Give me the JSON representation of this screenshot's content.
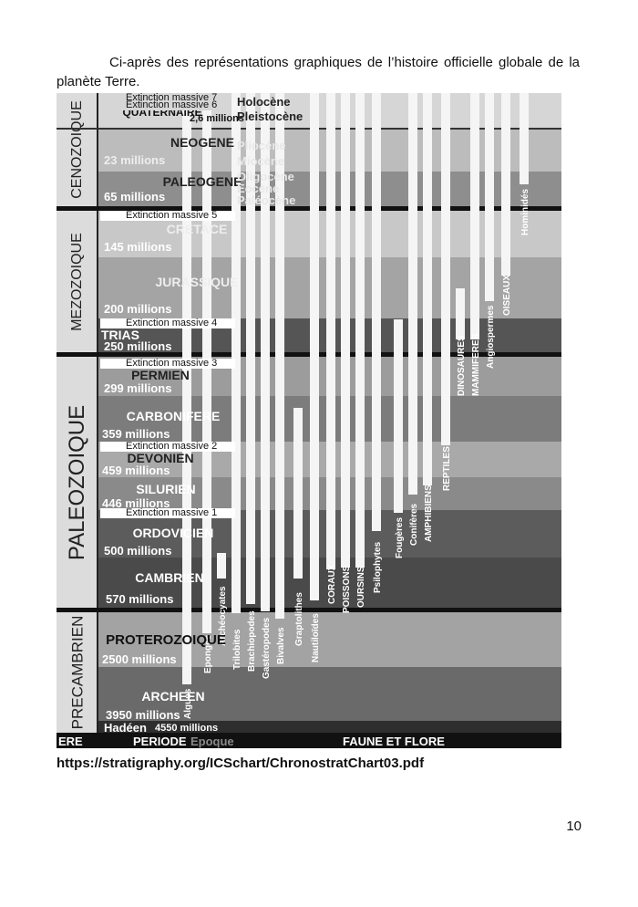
{
  "intro_text": "Ci-après des représentations graphiques de l’histoire officielle globale de la planète Terre.",
  "source_link": "https://stratigraphy.org/ICSchart/ChronostratChart03.pdf",
  "page_number": "10",
  "eras": [
    {
      "name": "CENOZOIQUE",
      "font_px": 16
    },
    {
      "name": "MEZOZOIQUE",
      "font_px": 16
    },
    {
      "name": "PALEOZOIQUE",
      "font_px": 24
    },
    {
      "name": "PRECAMBRIEN",
      "font_px": 17
    }
  ],
  "periods": [
    {
      "name": "QUATERNAIRE",
      "time": "2,6 millions",
      "shade": "#d6d6d6"
    },
    {
      "name": "NEOGENE",
      "time": "23 millions",
      "shade": "#bcbcbc"
    },
    {
      "name": "PALEOGENE",
      "time": "65 millions",
      "shade": "#8e8e8e"
    },
    {
      "name": "CRETACE",
      "time": "145 millions",
      "shade": "#c8c8c8"
    },
    {
      "name": "JURASSIQUE",
      "time": "200 millions",
      "shade": "#a4a4a4"
    },
    {
      "name": "TRIAS",
      "time": "250 millions",
      "shade": "#555555"
    },
    {
      "name": "PERMIEN",
      "time": "299 millions",
      "shade": "#9c9c9c"
    },
    {
      "name": "CARBONIFERE",
      "time": "359 millions",
      "shade": "#7c7c7c"
    },
    {
      "name": "DEVONIEN",
      "time": "459 millions",
      "shade": "#a9a9a9"
    },
    {
      "name": "SILURIEN",
      "time": "446 millions",
      "shade": "#8a8a8a"
    },
    {
      "name": "ORDOVICIEN",
      "time": "500 millions",
      "shade": "#5c5c5c"
    },
    {
      "name": "CAMBRIEN",
      "time": "570 millions",
      "shade": "#4a4a4a"
    },
    {
      "name": "PROTEROZOIQUE",
      "time": "2500 millions",
      "shade": "#a3a3a3"
    },
    {
      "name": "ARCHEEN",
      "time": "3950 millions",
      "shade": "#6a6a6a"
    },
    {
      "name": "Hadéen",
      "time": "4550 millions",
      "shade": "#2e2e2e"
    }
  ],
  "extinctions": [
    "Extinction massive 7",
    "Extinction massive 6",
    "Extinction massive 5",
    "Extinction massive  4",
    "Extinction massive 3",
    "Extinction massive 2",
    "Extinction massive 1"
  ],
  "epochs": [
    "Holocène",
    "Pleistocène",
    "Pliocène",
    "Miocène",
    "Oligocène",
    "Eocène",
    "Paléocène"
  ],
  "lineages": [
    {
      "label": "Algues",
      "start": 0
    },
    {
      "label": "Eponges",
      "start": 0
    },
    {
      "label": "Archéocyates",
      "start": 0.73
    },
    {
      "label": "Trilobites",
      "start": 0
    },
    {
      "label": "Brachiopodes",
      "start": 0
    },
    {
      "label": "Gastéropodes",
      "start": 0
    },
    {
      "label": "Bivalves",
      "start": 0
    },
    {
      "label": "Graptolithes",
      "start": 0.5
    },
    {
      "label": "Nautiloïdes",
      "start": 0
    },
    {
      "label": "CORAUX",
      "start": 0
    },
    {
      "label": "POISSONS",
      "start": 0
    },
    {
      "label": "OURSINS",
      "start": 0
    },
    {
      "label": "Psilophytes",
      "start": 0
    },
    {
      "label": "Fougères",
      "start": 0.36
    },
    {
      "label": "Conifères",
      "start": 0
    },
    {
      "label": "AMPHIBIENS",
      "start": 0
    },
    {
      "label": "REPTILES",
      "start": 0
    },
    {
      "label": "DINOSAURES",
      "start": 0.31
    },
    {
      "label": "MAMMIFERES",
      "start": 0
    },
    {
      "label": "Angiospermes",
      "start": 0
    },
    {
      "label": "OISEAUX",
      "start": 0
    },
    {
      "label": "Hominidés",
      "start": 0
    }
  ],
  "footer": {
    "ere": "ERE",
    "periode": "PERIODE",
    "epoque": "Epoque",
    "faune": "FAUNE ET FLORE"
  },
  "colors": {
    "separator": "#111111",
    "bar": "#f5f5f5",
    "label_on_dark": "#ffffff"
  }
}
